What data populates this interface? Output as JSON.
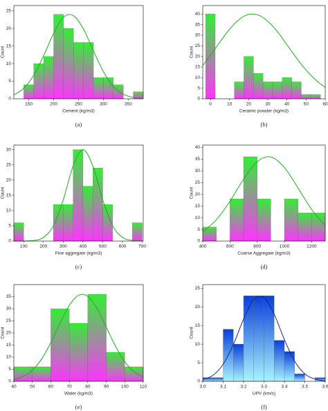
{
  "chart_data": [
    {
      "type": "histogram",
      "caption": "(a)",
      "xlabel": "Cement (kg/m3)",
      "ylabel": "Count",
      "bins": [
        140,
        160,
        180,
        200,
        220,
        240,
        260,
        280,
        300,
        320,
        340,
        360,
        380
      ],
      "counts": [
        4,
        10,
        12,
        24,
        20,
        16,
        16,
        6,
        6,
        4,
        0,
        2
      ],
      "xlim": [
        120,
        380
      ],
      "ylim": [
        0,
        26.5
      ],
      "xticks": [
        150,
        200,
        250,
        300,
        350
      ],
      "yticks": [
        0,
        5,
        10,
        15,
        20,
        25
      ],
      "colors": {
        "top": "#33ee33",
        "bottom": "#ff33ff",
        "fit": "#22aa22"
      },
      "fit": {
        "x": [
          120,
          140,
          160,
          180,
          200,
          220,
          240,
          260,
          280,
          300,
          320,
          340,
          360,
          380
        ],
        "values": [
          1.1,
          3.0,
          6.7,
          12.3,
          18.6,
          23.2,
          23.6,
          19.8,
          13.6,
          7.7,
          3.5,
          1.3,
          0.4,
          0.1
        ]
      }
    },
    {
      "type": "histogram",
      "caption": "(b)",
      "xlabel": "Ceramic powder (kg/m3)",
      "ylabel": "Count",
      "bins": [
        -2.5,
        2.5,
        7.5,
        12.5,
        17.5,
        22.5,
        27.5,
        32.5,
        37.5,
        42.5,
        47.5,
        52.5,
        57.5
      ],
      "counts": [
        40,
        0,
        0,
        8,
        20,
        12,
        8,
        8,
        10,
        8,
        2,
        2
      ],
      "xlim": [
        -4,
        60
      ],
      "ylim": [
        0,
        44
      ],
      "xticks": [
        0,
        10,
        20,
        30,
        40,
        50,
        60
      ],
      "yticks": [
        0,
        5,
        10,
        15,
        20,
        25,
        30,
        35,
        40
      ],
      "colors": {
        "top": "#33ee33",
        "bottom": "#ff33ff",
        "fit": "#22aa22"
      },
      "fit": {
        "x": [
          -4,
          0,
          5,
          10,
          15,
          20,
          25,
          30,
          35,
          40,
          45,
          50,
          55,
          60
        ],
        "values": [
          15.7,
          20.5,
          26.8,
          32.8,
          37.4,
          39.8,
          39.5,
          36.6,
          31.7,
          25.5,
          19.2,
          13.5,
          8.9,
          5.4
        ]
      }
    },
    {
      "type": "histogram",
      "caption": "(c)",
      "xlabel": "Fine aggregate (kg/m3)",
      "ylabel": "Count",
      "bins": [
        50,
        100,
        150,
        200,
        250,
        300,
        350,
        400,
        450,
        500,
        550,
        600,
        650,
        700
      ],
      "counts": [
        6,
        0,
        0,
        0,
        12,
        12,
        30,
        18,
        24,
        12,
        0,
        0,
        6
      ],
      "xlim": [
        50,
        705
      ],
      "ylim": [
        0,
        31.5
      ],
      "xticks": [
        100,
        200,
        300,
        400,
        500,
        600,
        700
      ],
      "yticks": [
        0,
        5,
        10,
        15,
        20,
        25,
        30
      ],
      "colors": {
        "top": "#33ee33",
        "bottom": "#ff33ff",
        "fit": "#22aa22"
      },
      "fit": {
        "x": [
          50,
          100,
          150,
          200,
          250,
          300,
          350,
          400,
          450,
          500,
          550,
          600,
          650,
          700
        ],
        "values": [
          0,
          0.02,
          0.2,
          1.2,
          5.0,
          13.5,
          24.6,
          30,
          24.6,
          13.5,
          5.0,
          1.2,
          0.2,
          0.02
        ]
      }
    },
    {
      "type": "histogram",
      "caption": "(d)",
      "xlabel": "Coarse Aggregate (kg/m3)",
      "ylabel": "Count",
      "bins": [
        400,
        500,
        600,
        700,
        800,
        900,
        1000,
        1100,
        1200,
        1300
      ],
      "counts": [
        6,
        0,
        18,
        36,
        18,
        0,
        18,
        12,
        12
      ],
      "xlim": [
        400,
        1300
      ],
      "ylim": [
        0,
        41
      ],
      "xticks": [
        400,
        600,
        800,
        1000,
        1200
      ],
      "yticks": [
        0,
        5,
        10,
        15,
        20,
        25,
        30,
        35,
        40
      ],
      "colors": {
        "top": "#33ee33",
        "bottom": "#ff33ff",
        "fit": "#22aa22"
      },
      "fit": {
        "x": [
          400,
          500,
          600,
          700,
          800,
          900,
          1000,
          1100,
          1200,
          1300
        ],
        "values": [
          4.0,
          9.1,
          17.0,
          26.4,
          33.9,
          35.9,
          31.4,
          22.7,
          13.5,
          6.7
        ]
      }
    },
    {
      "type": "histogram",
      "caption": "(e)",
      "xlabel": "Water (kg/m3)",
      "ylabel": "Count",
      "bins": [
        40,
        50,
        60,
        70,
        80,
        90,
        100,
        110
      ],
      "counts": [
        6,
        6,
        30,
        24,
        36,
        12,
        6
      ],
      "xlim": [
        40,
        110
      ],
      "ylim": [
        0,
        40
      ],
      "xticks": [
        40,
        50,
        60,
        70,
        80,
        90,
        100,
        110
      ],
      "yticks": [
        0,
        5,
        10,
        15,
        20,
        25,
        30,
        35
      ],
      "colors": {
        "top": "#33ee33",
        "bottom": "#ff33ff",
        "fit": "#22aa22"
      },
      "fit": {
        "x": [
          40,
          45,
          50,
          55,
          60,
          65,
          70,
          75,
          80,
          85,
          90,
          95,
          100,
          105,
          110
        ],
        "values": [
          0.8,
          2.0,
          4.6,
          9.2,
          16.0,
          24.0,
          31.4,
          35.6,
          35.1,
          30.1,
          22.4,
          14.5,
          8.1,
          4.0,
          1.7
        ]
      }
    },
    {
      "type": "histogram",
      "caption": "(f)",
      "xlabel": "UPV (km/s)",
      "ylabel": "Count",
      "bins": [
        3.0,
        3.05,
        3.1,
        3.15,
        3.2,
        3.25,
        3.3,
        3.35,
        3.4,
        3.45,
        3.5,
        3.55,
        3.6
      ],
      "counts": [
        1,
        1,
        14,
        10,
        23,
        23,
        23,
        11,
        8,
        2,
        0,
        1
      ],
      "xlim": [
        3.0,
        3.6
      ],
      "ylim": [
        0,
        26
      ],
      "xticks": [
        {
          "value": 3.0,
          "label": "3.0"
        },
        3.1,
        3.2,
        3.3,
        3.4,
        3.5,
        3.6
      ],
      "yticks": [
        0,
        5,
        10,
        15,
        20,
        25
      ],
      "colors": {
        "top": "#0a3fd8",
        "bottom": "#a8f4ff",
        "fit": "#1a237e"
      },
      "fit": {
        "x": [
          3.0,
          3.05,
          3.1,
          3.15,
          3.2,
          3.25,
          3.3,
          3.35,
          3.4,
          3.45,
          3.5,
          3.55,
          3.6
        ],
        "values": [
          0.5,
          1.6,
          4.6,
          9.9,
          16.7,
          22.0,
          22.5,
          18.0,
          11.2,
          5.4,
          2.0,
          0.6,
          0.1
        ]
      }
    }
  ]
}
